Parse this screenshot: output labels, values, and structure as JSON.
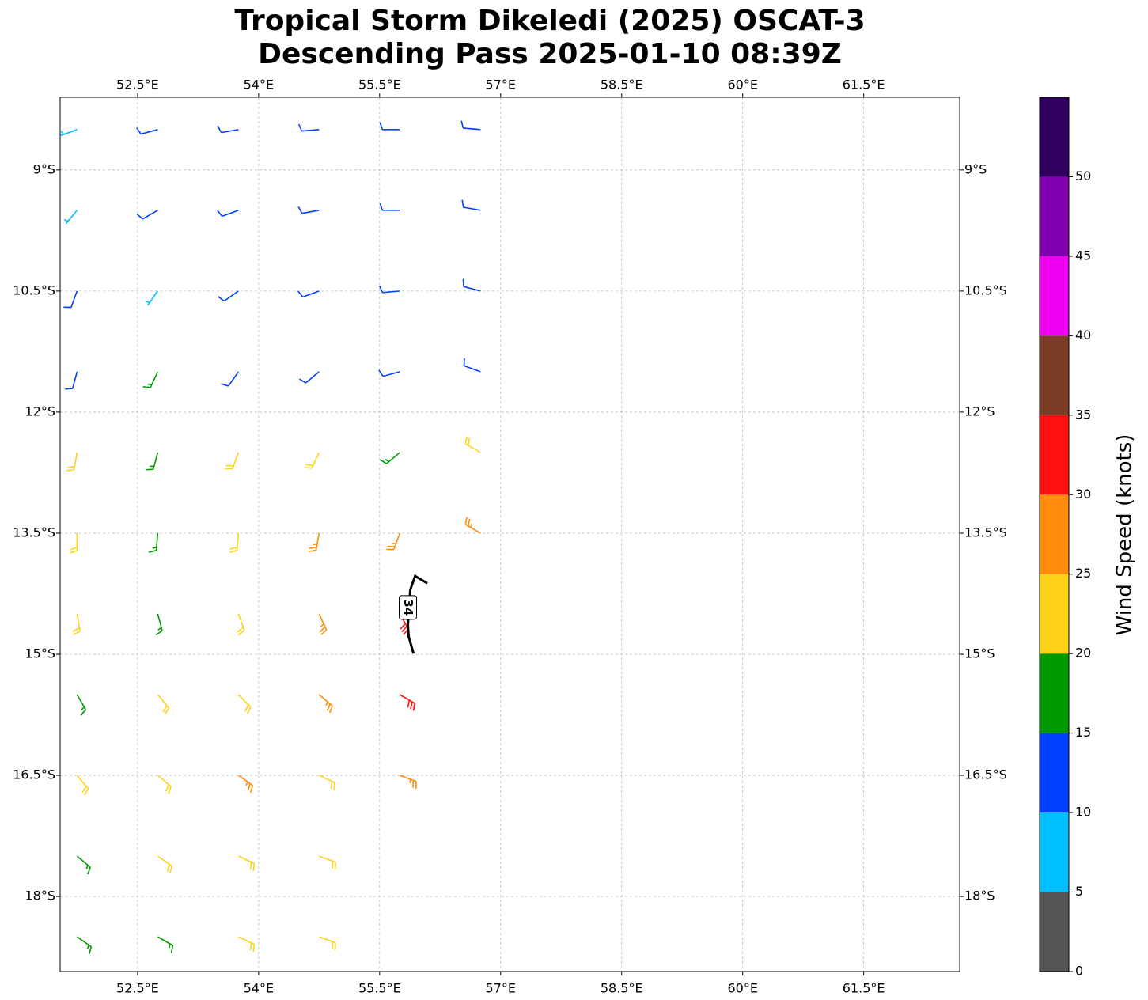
{
  "chart_data": {
    "type": "wind-barb",
    "title": "Tropical Storm Dikeledi (2025) OSCAT-3",
    "subtitle": "Descending Pass 2025-01-10 08:39Z",
    "xlim": [
      51.54,
      62.69
    ],
    "ylim": [
      -18.93,
      -8.1
    ],
    "xticks": [
      {
        "value": 52.5,
        "label": "52.5°E"
      },
      {
        "value": 54,
        "label": "54°E"
      },
      {
        "value": 55.5,
        "label": "55.5°E"
      },
      {
        "value": 57,
        "label": "57°E"
      },
      {
        "value": 58.5,
        "label": "58.5°E"
      },
      {
        "value": 60,
        "label": "60°E"
      },
      {
        "value": 61.5,
        "label": "61.5°E"
      }
    ],
    "yticks": [
      {
        "value": -9,
        "label": "9°S"
      },
      {
        "value": -10.5,
        "label": "10.5°S"
      },
      {
        "value": -12,
        "label": "12°S"
      },
      {
        "value": -13.5,
        "label": "13.5°S"
      },
      {
        "value": -15,
        "label": "15°S"
      },
      {
        "value": -16.5,
        "label": "16.5°S"
      },
      {
        "value": -18,
        "label": "18°S"
      }
    ],
    "grid": true,
    "barbs": [
      [
        51.75,
        -8.5,
        8,
        250
      ],
      [
        52.75,
        -8.5,
        10,
        255
      ],
      [
        53.75,
        -8.5,
        11,
        260
      ],
      [
        54.75,
        -8.5,
        12,
        265
      ],
      [
        55.75,
        -8.5,
        12,
        270
      ],
      [
        56.75,
        -8.5,
        12,
        275
      ],
      [
        51.75,
        -9.5,
        9,
        220
      ],
      [
        52.75,
        -9.5,
        11,
        240
      ],
      [
        53.75,
        -9.5,
        11,
        250
      ],
      [
        54.75,
        -9.5,
        12,
        260
      ],
      [
        55.75,
        -9.5,
        12,
        270
      ],
      [
        56.75,
        -9.5,
        12,
        280
      ],
      [
        51.75,
        -10.5,
        10,
        200
      ],
      [
        52.75,
        -10.5,
        9,
        215
      ],
      [
        53.75,
        -10.5,
        11,
        235
      ],
      [
        54.75,
        -10.5,
        12,
        250
      ],
      [
        55.75,
        -10.5,
        12,
        265
      ],
      [
        56.75,
        -10.5,
        12,
        285
      ],
      [
        51.75,
        -11.5,
        14,
        195
      ],
      [
        52.75,
        -11.5,
        16,
        205
      ],
      [
        53.75,
        -11.5,
        13,
        215
      ],
      [
        54.75,
        -11.5,
        12,
        230
      ],
      [
        55.75,
        -11.5,
        12,
        255
      ],
      [
        56.75,
        -11.5,
        11,
        290
      ],
      [
        51.75,
        -12.5,
        20,
        190
      ],
      [
        52.75,
        -12.5,
        19,
        195
      ],
      [
        53.75,
        -12.5,
        22,
        200
      ],
      [
        54.75,
        -12.5,
        22,
        205
      ],
      [
        55.75,
        -12.5,
        18,
        230
      ],
      [
        56.75,
        -12.5,
        22,
        300
      ],
      [
        51.75,
        -13.5,
        22,
        180
      ],
      [
        52.75,
        -13.5,
        18,
        185
      ],
      [
        53.75,
        -13.5,
        24,
        185
      ],
      [
        54.75,
        -13.5,
        26,
        190
      ],
      [
        55.75,
        -13.5,
        28,
        200
      ],
      [
        56.75,
        -13.5,
        25,
        300
      ],
      [
        51.75,
        -14.5,
        24,
        170
      ],
      [
        52.75,
        -14.5,
        17,
        165
      ],
      [
        53.75,
        -14.5,
        22,
        160
      ],
      [
        54.75,
        -14.5,
        27,
        155
      ],
      [
        55.75,
        -14.5,
        33,
        150
      ],
      [
        51.75,
        -15.5,
        18,
        150
      ],
      [
        52.75,
        -15.5,
        22,
        140
      ],
      [
        53.75,
        -15.5,
        24,
        135
      ],
      [
        54.75,
        -15.5,
        27,
        130
      ],
      [
        55.75,
        -15.5,
        33,
        120
      ],
      [
        51.75,
        -16.5,
        20,
        140
      ],
      [
        52.75,
        -16.5,
        22,
        130
      ],
      [
        53.75,
        -16.5,
        26,
        125
      ],
      [
        54.75,
        -16.5,
        24,
        115
      ],
      [
        55.75,
        -16.5,
        28,
        110
      ],
      [
        51.75,
        -17.5,
        17,
        130
      ],
      [
        52.75,
        -17.5,
        22,
        125
      ],
      [
        53.75,
        -17.5,
        22,
        115
      ],
      [
        54.75,
        -17.5,
        23,
        110
      ],
      [
        51.75,
        -18.5,
        15,
        125
      ],
      [
        52.75,
        -18.5,
        17,
        120
      ],
      [
        53.75,
        -18.5,
        20,
        115
      ],
      [
        54.75,
        -18.5,
        22,
        110
      ]
    ],
    "contour": {
      "level": 34,
      "lons": [
        56.09,
        55.94,
        55.88,
        55.85,
        55.86,
        55.92
      ],
      "lats": [
        -14.12,
        -14.03,
        -14.2,
        -14.64,
        -14.78,
        -14.99
      ]
    },
    "colorbar": {
      "label": "Wind Speed (knots)",
      "lim": [
        0,
        55
      ],
      "ticks": [
        0,
        5,
        10,
        15,
        20,
        25,
        30,
        35,
        40,
        45,
        50
      ],
      "colors": [
        "#555555",
        "#00bfff",
        "#0040ff",
        "#009900",
        "#ffd21a",
        "#ff8c0a",
        "#ff1010",
        "#7b3d26",
        "#f000f0",
        "#8000b0",
        "#300060"
      ]
    }
  }
}
